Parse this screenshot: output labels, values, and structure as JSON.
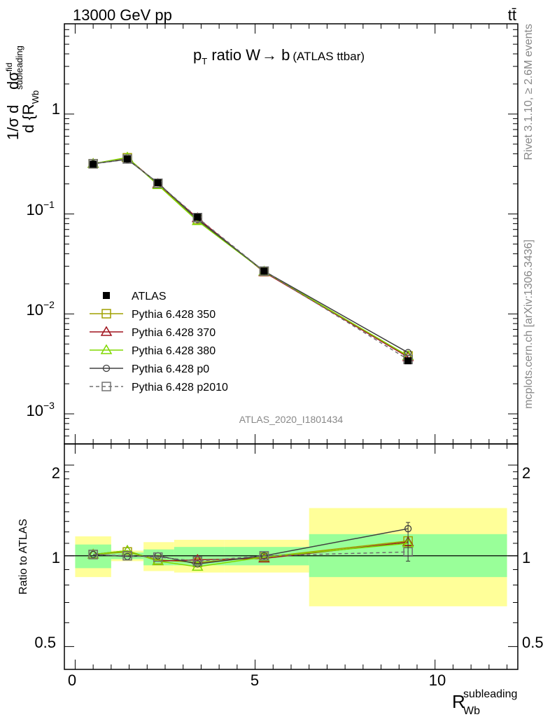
{
  "header": {
    "energy": "13000 GeV pp",
    "process": "tt̄"
  },
  "side": {
    "rivet": "Rivet 3.1.10, ≥ 2.6M events",
    "mcplots": "mcplots.cern.ch [arXiv:1306.3436]"
  },
  "plot": {
    "title_pt": "p",
    "title_T": "T",
    "title_rest": " ratio W",
    "title_arrow": "→",
    "title_b": " b",
    "title_sub": "(ATLAS ttbar)",
    "analysis": "ATLAS_2020_I1801434",
    "ylabel_top": "dσ",
    "ylabel_top_sup": "fid",
    "ylabel_bottom": "d {R",
    "ylabel_sub": "Wb",
    "ylabel_sup": "subleading",
    "ylabel_prefix": "1/σ d",
    "ratio_ylabel": "Ratio to ATLAS",
    "xlabel_R": "R",
    "xlabel_sup": "subleading",
    "xlabel_sub": "Wb"
  },
  "axis_labels": {
    "main_y": [
      "1",
      "10",
      "−1",
      "10",
      "−2",
      "10",
      "−3"
    ],
    "ratio_y": [
      "2",
      "1",
      "0.5"
    ],
    "x": [
      "0",
      "5",
      "10"
    ]
  },
  "chart_data": {
    "type": "line",
    "xlim": [
      -0.3,
      12.3
    ],
    "ylim_main": [
      0.0005,
      8
    ],
    "ylim_ratio": [
      0.42,
      2.35
    ],
    "ylog": true,
    "bins": [
      {
        "x": 0.5,
        "lo": 0.0,
        "hi": 1.0,
        "value": 0.315,
        "green": [
          0.91,
          1.09
        ],
        "yellow": [
          0.85,
          1.16
        ]
      },
      {
        "x": 1.45,
        "lo": 1.0,
        "hi": 1.9,
        "value": 0.355,
        "green": [
          0.975,
          1.025
        ],
        "yellow": [
          0.96,
          1.04
        ]
      },
      {
        "x": 2.3,
        "lo": 1.9,
        "hi": 2.75,
        "value": 0.205,
        "green": [
          0.93,
          1.05
        ],
        "yellow": [
          0.89,
          1.11
        ]
      },
      {
        "x": 3.4,
        "lo": 2.75,
        "hi": 4.15,
        "value": 0.093,
        "green": [
          0.93,
          1.07
        ],
        "yellow": [
          0.88,
          1.13
        ]
      },
      {
        "x": 5.25,
        "lo": 4.15,
        "hi": 6.5,
        "value": 0.0268,
        "green": [
          0.93,
          1.07
        ],
        "yellow": [
          0.88,
          1.13
        ]
      },
      {
        "x": 9.25,
        "lo": 6.5,
        "hi": 12.0,
        "value": 0.0034,
        "green": [
          0.85,
          1.18
        ],
        "yellow": [
          0.68,
          1.44
        ]
      }
    ],
    "series": [
      {
        "name": "ATLAS",
        "marker": "filled-square",
        "color": "#000000",
        "ratio": [
          1,
          1,
          1,
          1,
          1,
          1
        ]
      },
      {
        "name": "Pythia 6.428 350",
        "marker": "open-square",
        "color": "#a0a000",
        "values": [
          0.318,
          0.365,
          0.198,
          0.088,
          0.0265,
          0.0038
        ],
        "ratio": [
          1.01,
          1.03,
          0.97,
          0.95,
          0.99,
          1.12
        ]
      },
      {
        "name": "Pythia 6.428 370",
        "marker": "open-triangle",
        "color": "#a0141e",
        "values": [
          0.318,
          0.365,
          0.2,
          0.091,
          0.0262,
          0.0037
        ],
        "ratio": [
          1.01,
          1.04,
          0.96,
          0.97,
          0.98,
          1.11
        ]
      },
      {
        "name": "Pythia 6.428 380",
        "marker": "open-triangle",
        "color": "#80d800",
        "values": [
          0.318,
          0.368,
          0.195,
          0.085,
          0.0266,
          0.0038
        ],
        "ratio": [
          1.01,
          1.04,
          0.96,
          0.92,
          0.99,
          1.1
        ]
      },
      {
        "name": "Pythia 6.428 p0",
        "marker": "open-circle",
        "color": "#404040",
        "values": [
          0.318,
          0.352,
          0.205,
          0.088,
          0.0268,
          0.0041
        ],
        "ratio": [
          1.01,
          0.995,
          1.0,
          0.94,
          1.0,
          1.23
        ]
      },
      {
        "name": "Pythia 6.428 p2010",
        "marker": "open-square",
        "color": "#707070",
        "dashed": true,
        "values": [
          0.318,
          0.355,
          0.203,
          0.092,
          0.0268,
          0.0035
        ],
        "ratio": [
          1.01,
          1.0,
          0.99,
          0.96,
          1.0,
          1.03
        ]
      }
    ]
  }
}
